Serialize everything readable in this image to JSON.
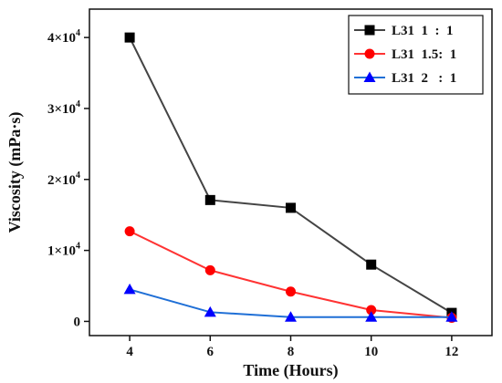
{
  "chart_data": {
    "type": "line",
    "title": "",
    "xlabel": "Time (Hours)",
    "ylabel": "Viscosity (mPa·s)",
    "x": [
      4,
      6,
      8,
      10,
      12
    ],
    "xlim": [
      3,
      13
    ],
    "ylim": [
      -2000,
      44000
    ],
    "x_ticks": [
      4,
      6,
      8,
      10,
      12
    ],
    "y_ticks": [
      {
        "value": 0,
        "mantissa": "0",
        "exponent": ""
      },
      {
        "value": 10000,
        "mantissa": "1×10",
        "exponent": "4"
      },
      {
        "value": 20000,
        "mantissa": "2×10",
        "exponent": "4"
      },
      {
        "value": 30000,
        "mantissa": "3×10",
        "exponent": "4"
      },
      {
        "value": 40000,
        "mantissa": "4×10",
        "exponent": "4"
      }
    ],
    "grid": false,
    "legend_position": "top-right",
    "series": [
      {
        "name": "L31  1  :  1",
        "color": "#000000",
        "line_color": "#444444",
        "marker": "square",
        "values": [
          40000,
          17100,
          16000,
          8000,
          1200
        ]
      },
      {
        "name": "L31  1.5:  1",
        "color": "#ff0000",
        "line_color": "#ff3333",
        "marker": "circle",
        "values": [
          12700,
          7200,
          4200,
          1600,
          500
        ]
      },
      {
        "name": "L31  2   :  1",
        "color": "#0000ff",
        "line_color": "#1f6fd6",
        "marker": "triangle",
        "values": [
          4500,
          1300,
          600,
          600,
          600
        ]
      }
    ]
  }
}
